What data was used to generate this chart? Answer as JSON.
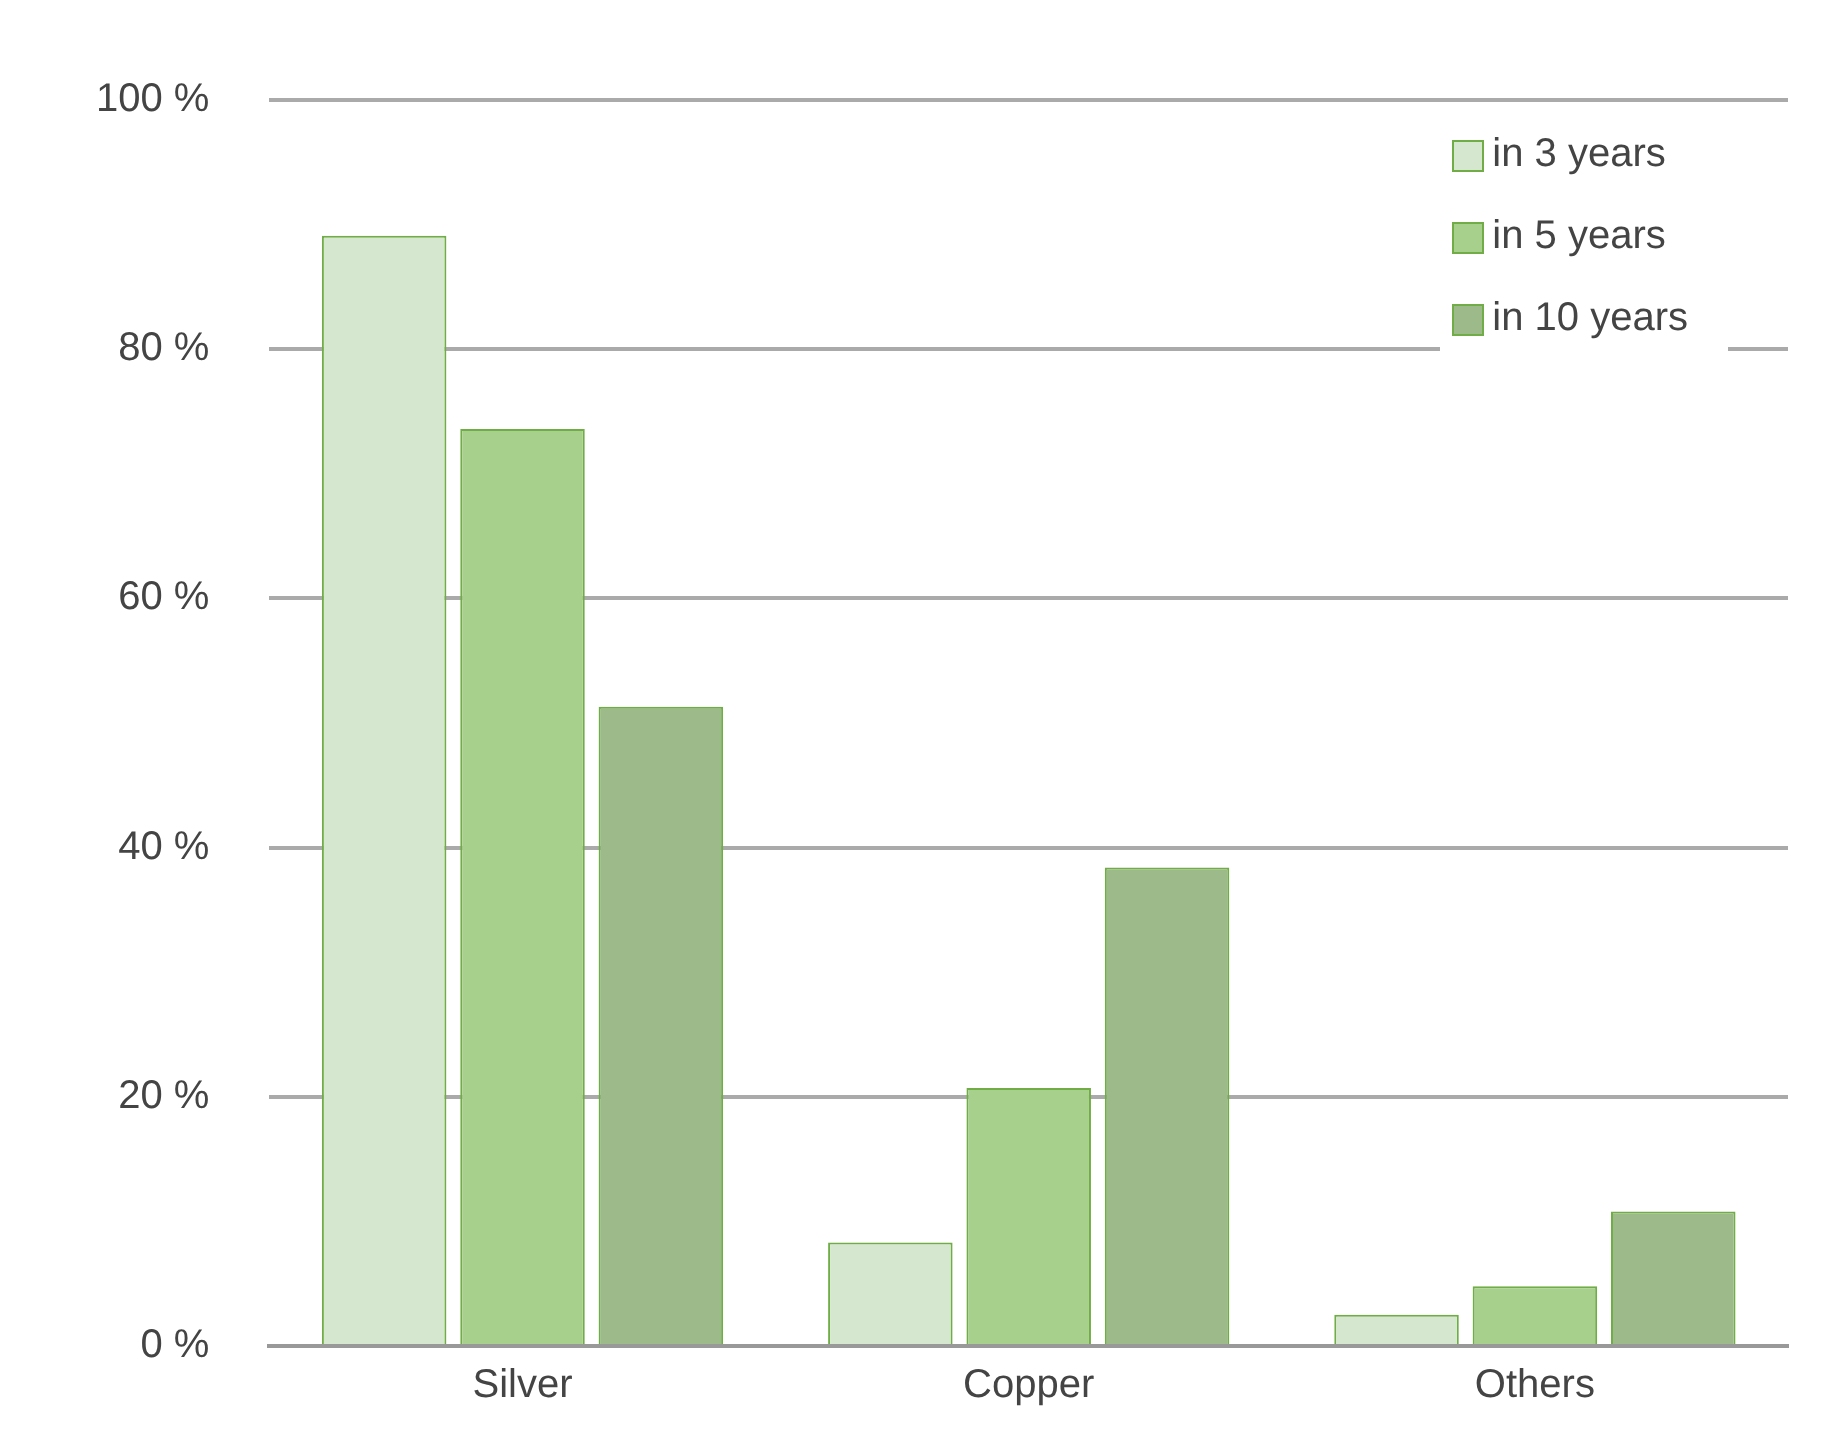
{
  "chart_data": {
    "type": "bar",
    "categories": [
      "Silver",
      "Copper",
      "Others"
    ],
    "series": [
      {
        "name": "in 3 years",
        "color": "#d5e8cf",
        "values": [
          89.1,
          8.3,
          2.5
        ]
      },
      {
        "name": "in 5 years",
        "color": "#a8d08d",
        "values": [
          73.6,
          20.7,
          4.8
        ]
      },
      {
        "name": "in 10 years",
        "color": "#9dbb8a",
        "values": [
          51.3,
          38.4,
          10.8
        ]
      }
    ],
    "ylim": [
      0,
      100
    ],
    "yticks": [
      {
        "value": 0,
        "label": "0 %"
      },
      {
        "value": 20,
        "label": "20 %"
      },
      {
        "value": 40,
        "label": "40 %"
      },
      {
        "value": 60,
        "label": "60 %"
      },
      {
        "value": 80,
        "label": "80 %"
      },
      {
        "value": 100,
        "label": "100 %"
      }
    ],
    "grid": "y",
    "legend": "top right"
  }
}
